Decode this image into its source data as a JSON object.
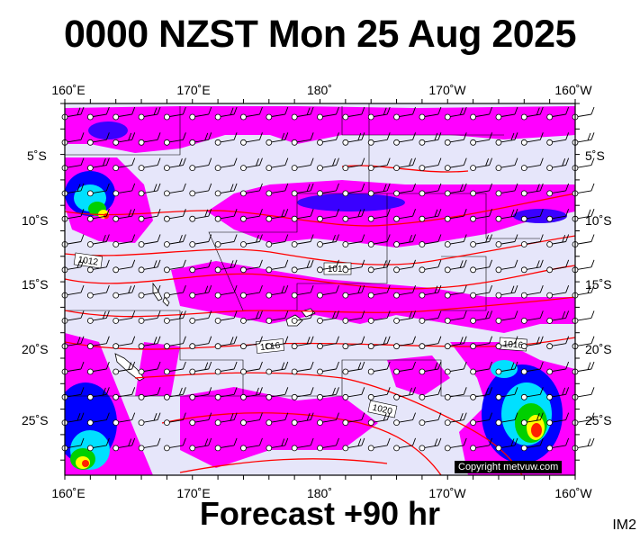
{
  "title": "0000 NZST Mon 25 Aug 2025",
  "subtitle": "Forecast +90 hr",
  "image_code": "IM2",
  "copyright": "Copyright metvuw.com",
  "axes": {
    "top_labels": [
      "160˚E",
      "170˚E",
      "180˚",
      "170˚W",
      "160˚W"
    ],
    "bottom_labels": [
      "160˚E",
      "170˚E",
      "180˚",
      "170˚W",
      "160˚W"
    ],
    "left_labels": [
      "5˚S",
      "10˚S",
      "15˚S",
      "20˚S",
      "25˚S"
    ],
    "right_labels": [
      "5˚S",
      "10˚S",
      "15˚S",
      "20˚S",
      "25˚S"
    ]
  },
  "isobar_labels": [
    "1012",
    "1012",
    "1016",
    "1016",
    "1020"
  ],
  "colors": {
    "ocean": "#e6e6fa",
    "rain_light": "#ff00ff",
    "rain_medium": "#0000ff",
    "rain_heavy": "#00ffff",
    "isobar": "#ff0000"
  }
}
